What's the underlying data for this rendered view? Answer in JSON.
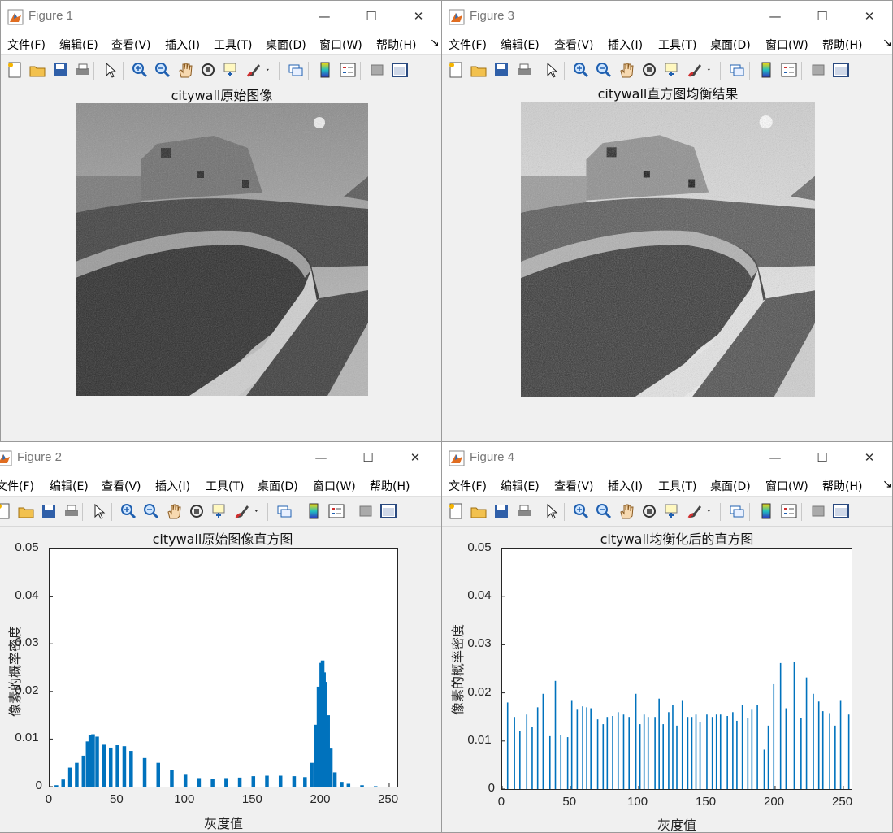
{
  "menu": [
    "文件(F)",
    "编辑(E)",
    "查看(V)",
    "插入(I)",
    "工具(T)",
    "桌面(D)",
    "窗口(W)",
    "帮助(H)"
  ],
  "overflow_glyph": "↘",
  "window_buttons": {
    "minimize": "—",
    "maximize": "☐",
    "close": "✕"
  },
  "toolbar_icons": [
    "new-figure-icon",
    "open-file-icon",
    "save-icon",
    "print-icon",
    "pointer-icon",
    "zoom-in-icon",
    "zoom-out-icon",
    "pan-hand-icon",
    "rotate-3d-icon",
    "data-cursor-icon",
    "brush-icon",
    "brush-dropdown-icon",
    "link-plot-icon",
    "colorbar-icon",
    "legend-icon",
    "hide-plot-tools-icon",
    "show-plot-tools-icon"
  ],
  "figure1": {
    "title": "Figure 1",
    "axes_title": "citywall原始图像"
  },
  "figure3": {
    "title": "Figure 3",
    "axes_title": "citywall直方图均衡结果"
  },
  "figure2": {
    "title": "Figure 2",
    "axes_title": "citywall原始图像直方图"
  },
  "figure4": {
    "title": "Figure 4",
    "axes_title": "citywall均衡化后的直方图"
  },
  "axis_text": {
    "xlabel": "灰度值",
    "ylabel": "像素的概率密度"
  },
  "ticks": {
    "x": [
      "0",
      "50",
      "100",
      "150",
      "200",
      "250"
    ],
    "y": [
      "0",
      "0.01",
      "0.02",
      "0.03",
      "0.04",
      "0.05"
    ]
  },
  "colors": {
    "series": "#0072BD"
  },
  "chart_data": [
    {
      "type": "bar",
      "title": "citywall原始图像直方图",
      "xlabel": "灰度值",
      "ylabel": "像素的概率密度",
      "xlim": [
        0,
        256
      ],
      "ylim": [
        0,
        0.05
      ],
      "x": [
        0,
        5,
        10,
        15,
        20,
        25,
        28,
        30,
        32,
        35,
        40,
        45,
        50,
        55,
        60,
        70,
        80,
        90,
        100,
        110,
        120,
        130,
        140,
        150,
        160,
        170,
        180,
        188,
        193,
        196,
        198,
        200,
        201,
        202,
        203,
        205,
        207,
        210,
        215,
        220,
        230,
        240,
        250
      ],
      "values": [
        0,
        0.0003,
        0.0015,
        0.004,
        0.005,
        0.0065,
        0.0095,
        0.0108,
        0.011,
        0.0105,
        0.0088,
        0.0082,
        0.0087,
        0.0085,
        0.0075,
        0.006,
        0.005,
        0.0035,
        0.0025,
        0.0018,
        0.0017,
        0.0018,
        0.0019,
        0.0022,
        0.0023,
        0.0023,
        0.0022,
        0.002,
        0.005,
        0.013,
        0.021,
        0.026,
        0.0265,
        0.024,
        0.022,
        0.015,
        0.008,
        0.003,
        0.001,
        0.0006,
        0.0003,
        0.0001,
        0
      ]
    },
    {
      "type": "bar",
      "title": "citywall均衡化后的直方图",
      "xlabel": "灰度值",
      "ylabel": "像素的概率密度",
      "xlim": [
        0,
        256
      ],
      "ylim": [
        0,
        0.05
      ],
      "x": [
        4,
        9,
        13,
        18,
        22,
        26,
        30,
        35,
        39,
        43,
        48,
        51,
        55,
        59,
        62,
        65,
        70,
        74,
        77,
        81,
        85,
        89,
        93,
        98,
        101,
        104,
        107,
        112,
        115,
        118,
        122,
        125,
        128,
        132,
        136,
        139,
        142,
        145,
        150,
        154,
        157,
        160,
        165,
        169,
        172,
        176,
        180,
        183,
        187,
        192,
        195,
        199,
        204,
        208,
        214,
        219,
        223,
        228,
        232,
        235,
        240,
        244,
        248,
        254
      ],
      "values": [
        0.018,
        0.015,
        0.012,
        0.0155,
        0.013,
        0.017,
        0.0198,
        0.011,
        0.0225,
        0.0112,
        0.0108,
        0.0185,
        0.0165,
        0.0172,
        0.017,
        0.0168,
        0.0145,
        0.0135,
        0.015,
        0.0152,
        0.016,
        0.0155,
        0.015,
        0.0198,
        0.0135,
        0.0155,
        0.015,
        0.015,
        0.0188,
        0.0135,
        0.016,
        0.0175,
        0.0132,
        0.0185,
        0.015,
        0.015,
        0.0155,
        0.014,
        0.0155,
        0.015,
        0.0155,
        0.0155,
        0.0152,
        0.016,
        0.0142,
        0.0175,
        0.0148,
        0.0165,
        0.0175,
        0.0082,
        0.0132,
        0.0218,
        0.0262,
        0.0168,
        0.0265,
        0.0148,
        0.0232,
        0.0198,
        0.0182,
        0.0162,
        0.0158,
        0.0132,
        0.0185,
        0.0155
      ]
    }
  ]
}
